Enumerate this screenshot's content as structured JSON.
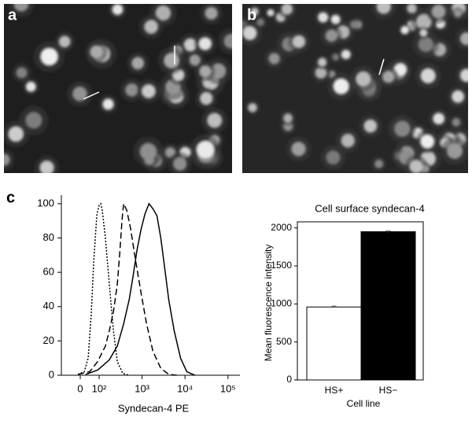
{
  "panel_labels": [
    "a",
    "b",
    "c"
  ],
  "chart_data": [
    {
      "type": "line",
      "xlabel": "Syndecan-4 PE",
      "xscale": "symlog",
      "linthresh": 100,
      "xlim": [
        -100,
        190000
      ],
      "ylim": [
        0,
        105
      ],
      "xticks": [
        0,
        {
          "value": 100,
          "label": "10²"
        },
        {
          "value": 1000,
          "label": "10³"
        },
        {
          "value": 10000,
          "label": "10⁴"
        },
        {
          "value": 100000,
          "label": "10⁵"
        }
      ],
      "yticks": [
        0,
        20,
        40,
        60,
        80,
        100
      ],
      "series": [
        {
          "color": "#000000",
          "dash": "dotted",
          "x": [
            -12,
            21,
            42,
            58,
            71,
            88,
            100,
            109,
            118,
            140,
            173,
            215,
            265,
            357,
            500
          ],
          "values": [
            0.5,
            2,
            10,
            35,
            66,
            94,
            99,
            100,
            96,
            80,
            53,
            26,
            8,
            1,
            0
          ]
        },
        {
          "color": "#000000",
          "dash": "dashed",
          "x": [
            -12,
            50,
            92,
            140,
            173,
            215,
            265,
            301,
            342,
            372,
            441,
            545,
            703,
            945,
            1270,
            1790,
            2730,
            4170,
            6360
          ],
          "values": [
            0.5,
            2,
            8,
            17,
            26,
            37,
            53,
            71,
            91,
            100,
            96,
            85,
            67,
            48,
            30,
            14,
            4,
            0.5,
            0
          ]
        },
        {
          "color": "#000000",
          "dash": "solid",
          "x": [
            29,
            92,
            173,
            265,
            372,
            501,
            609,
            763,
            945,
            1170,
            1450,
            1790,
            2220,
            2730,
            3380,
            4170,
            5590,
            7860,
            11000,
            16900
          ],
          "values": [
            0.5,
            3,
            9,
            17,
            30,
            44,
            57,
            73,
            85,
            94,
            100,
            97,
            93,
            80,
            62,
            44,
            26,
            10,
            2,
            0
          ]
        }
      ]
    },
    {
      "type": "bar",
      "title": "Cell surface syndecan-4",
      "xlabel": "Cell line",
      "ylabel": "Mean fluorescence intensity",
      "categories": [
        "HS+",
        "HS−"
      ],
      "values": [
        960,
        1950
      ],
      "errors": [
        12,
        10
      ],
      "colors": [
        "#ffffff",
        "#000000"
      ],
      "ylim": [
        0,
        2080
      ],
      "yticks": [
        0,
        500,
        1000,
        1500,
        2000
      ]
    }
  ]
}
